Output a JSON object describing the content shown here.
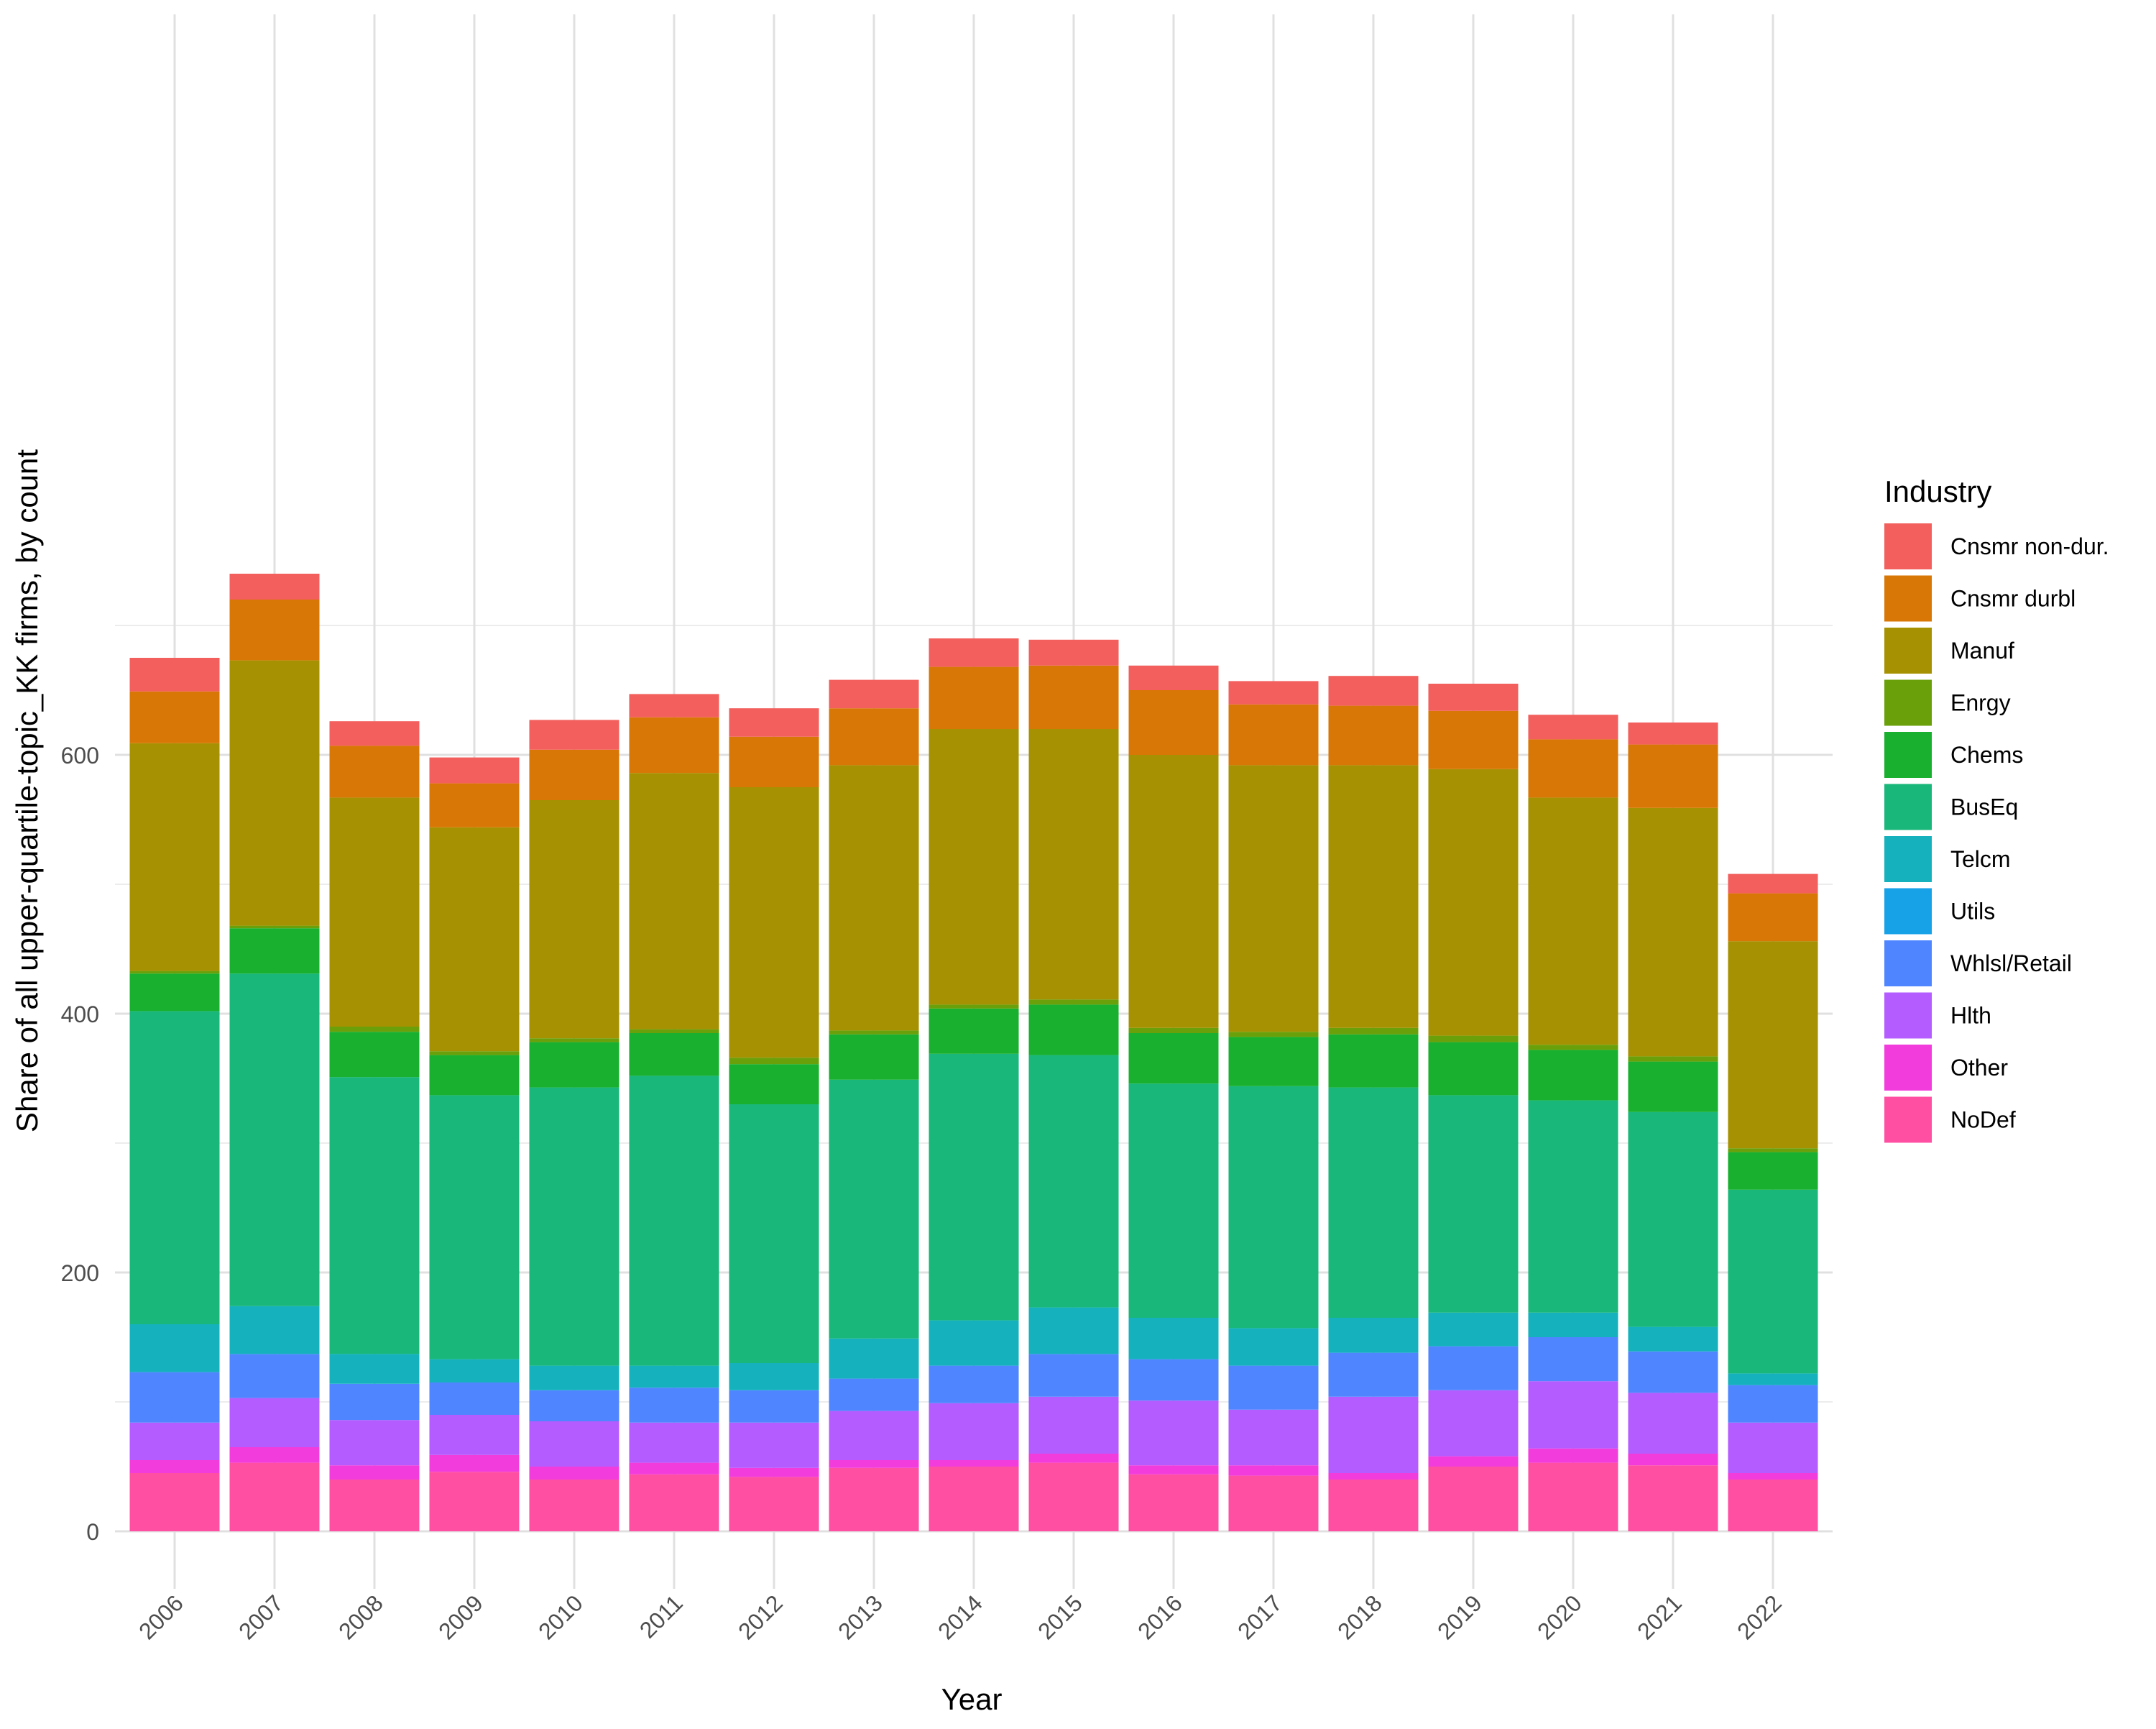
{
  "chart_data": {
    "type": "bar",
    "stacked": true,
    "title": "",
    "xlabel": "Year",
    "ylabel": "Share of all upper-quartile-topic_KK firms, by count",
    "ylim": [
      -30,
      780
    ],
    "yticks": [
      0,
      200,
      400,
      600
    ],
    "grid": true,
    "legend_title": "Industry",
    "legend_position": "right",
    "categories": [
      "2006",
      "2007",
      "2008",
      "2009",
      "2010",
      "2011",
      "2012",
      "2013",
      "2014",
      "2015",
      "2016",
      "2017",
      "2018",
      "2019",
      "2020",
      "2021",
      "2022"
    ],
    "series": [
      {
        "name": "NoDef",
        "color": "#FF4FA3",
        "values": [
          45,
          53,
          40,
          46,
          40,
          44,
          42,
          49,
          50,
          53,
          44,
          43,
          40,
          50,
          53,
          51,
          40
        ]
      },
      {
        "name": "Other",
        "color": "#F23DDC",
        "values": [
          10,
          12,
          11,
          13,
          10,
          9,
          7,
          6,
          5,
          7,
          7,
          8,
          5,
          8,
          11,
          9,
          5
        ]
      },
      {
        "name": "Hlth",
        "color": "#B45CFF",
        "values": [
          29,
          38,
          35,
          31,
          35,
          31,
          35,
          38,
          44,
          44,
          50,
          43,
          59,
          51,
          52,
          47,
          39
        ]
      },
      {
        "name": "Whlsl/Retail",
        "color": "#4F86FF",
        "values": [
          39,
          34,
          28,
          25,
          24,
          27,
          25,
          25,
          29,
          33,
          32,
          34,
          34,
          34,
          34,
          32,
          29
        ]
      },
      {
        "name": "Utils",
        "color": "#17A2E8",
        "values": [
          0,
          0,
          0,
          0,
          0,
          0,
          0,
          0,
          0,
          0,
          0,
          0,
          0,
          0,
          0,
          0,
          0
        ]
      },
      {
        "name": "Telcm",
        "color": "#15B2BE",
        "values": [
          37,
          37,
          23,
          18,
          19,
          17,
          21,
          31,
          35,
          36,
          32,
          29,
          27,
          26,
          19,
          19,
          9
        ]
      },
      {
        "name": "BusEq",
        "color": "#19B77A",
        "values": [
          242,
          257,
          214,
          204,
          215,
          224,
          200,
          200,
          206,
          195,
          181,
          187,
          178,
          168,
          164,
          166,
          142
        ]
      },
      {
        "name": "Chems",
        "color": "#18B02E",
        "values": [
          29,
          35,
          35,
          31,
          35,
          33,
          31,
          35,
          35,
          39,
          39,
          38,
          41,
          41,
          39,
          39,
          29
        ]
      },
      {
        "name": "Enrgy",
        "color": "#6AA00A",
        "values": [
          2,
          2,
          4,
          3,
          3,
          3,
          5,
          3,
          3,
          4,
          4,
          4,
          5,
          5,
          4,
          4,
          3
        ]
      },
      {
        "name": "Manuf",
        "color": "#A69102",
        "values": [
          176,
          205,
          177,
          173,
          184,
          198,
          209,
          205,
          213,
          209,
          211,
          206,
          203,
          206,
          191,
          192,
          160
        ]
      },
      {
        "name": "Cnsmr durbl",
        "color": "#D97706",
        "values": [
          40,
          47,
          40,
          34,
          39,
          43,
          39,
          44,
          48,
          49,
          50,
          47,
          46,
          45,
          45,
          49,
          37
        ]
      },
      {
        "name": "Cnsmr non-dur.",
        "color": "#F25F5C",
        "values": [
          26,
          20,
          19,
          20,
          23,
          18,
          22,
          22,
          22,
          20,
          19,
          18,
          23,
          21,
          19,
          17,
          15
        ]
      }
    ]
  }
}
